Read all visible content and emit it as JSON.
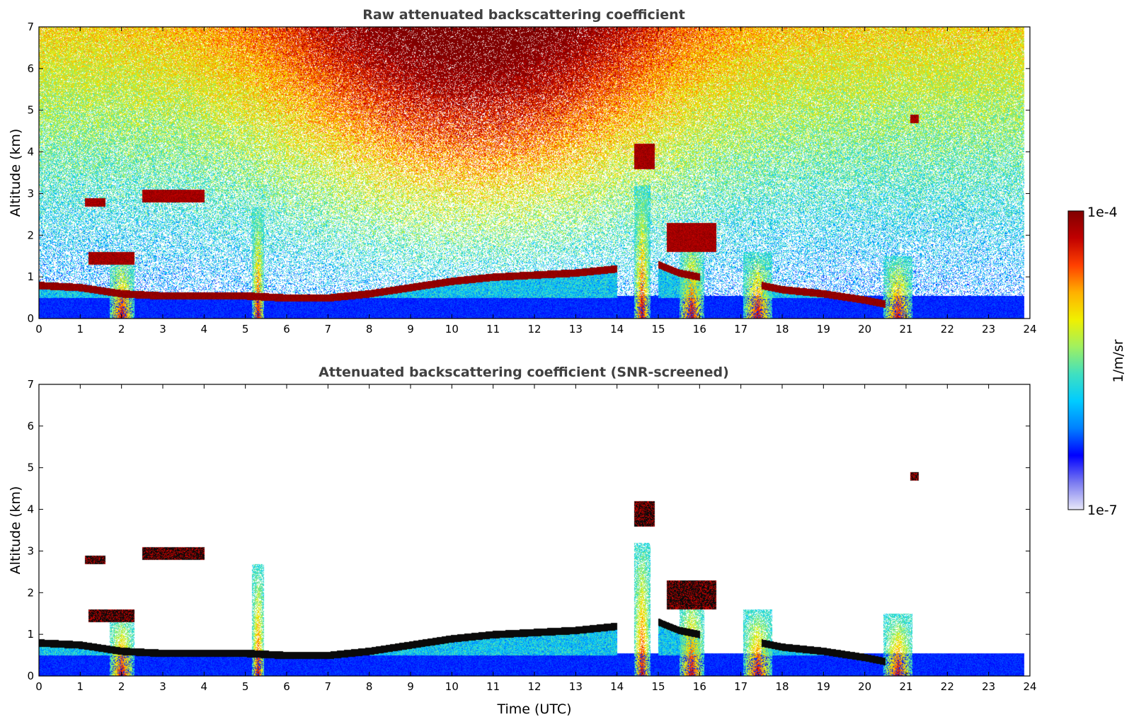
{
  "chart_data": [
    {
      "type": "heatmap",
      "title": "Raw attenuated backscattering coefficient",
      "xlabel": "",
      "ylabel": "Altitude (km)",
      "xlim": [
        0,
        24
      ],
      "ylim": [
        0,
        7
      ],
      "xticks": [
        "0",
        "1",
        "2",
        "3",
        "4",
        "5",
        "6",
        "7",
        "8",
        "9",
        "10",
        "11",
        "12",
        "13",
        "14",
        "15",
        "16",
        "17",
        "18",
        "19",
        "20",
        "21",
        "22",
        "23",
        "24"
      ],
      "yticks": [
        "0",
        "1",
        "2",
        "3",
        "4",
        "5",
        "6",
        "7"
      ],
      "screened": false,
      "features": [
        {
          "kind": "boundary-layer",
          "points": [
            [
              0,
              0.8
            ],
            [
              1,
              0.75
            ],
            [
              2,
              0.6
            ],
            [
              3,
              0.55
            ],
            [
              4,
              0.55
            ],
            [
              5,
              0.55
            ],
            [
              6,
              0.5
            ],
            [
              7,
              0.5
            ],
            [
              8,
              0.6
            ],
            [
              9,
              0.75
            ],
            [
              10,
              0.9
            ],
            [
              11,
              1.0
            ],
            [
              12,
              1.05
            ],
            [
              13,
              1.1
            ],
            [
              14,
              1.2
            ]
          ]
        },
        {
          "kind": "boundary-layer",
          "points": [
            [
              15,
              1.3
            ],
            [
              15.5,
              1.1
            ],
            [
              16,
              1.0
            ]
          ]
        },
        {
          "kind": "boundary-layer",
          "points": [
            [
              17.5,
              0.8
            ],
            [
              18,
              0.7
            ],
            [
              19,
              0.6
            ],
            [
              20,
              0.45
            ],
            [
              20.5,
              0.35
            ]
          ]
        },
        {
          "kind": "cloud",
          "x": [
            1.1,
            1.6
          ],
          "y": [
            2.7,
            2.9
          ]
        },
        {
          "kind": "cloud",
          "x": [
            2.5,
            4.0
          ],
          "y": [
            2.8,
            3.1
          ]
        },
        {
          "kind": "cloud",
          "x": [
            1.2,
            2.3
          ],
          "y": [
            1.3,
            1.6
          ]
        },
        {
          "kind": "cloud",
          "x": [
            14.4,
            14.9
          ],
          "y": [
            3.6,
            4.2
          ]
        },
        {
          "kind": "cloud",
          "x": [
            15.2,
            16.4
          ],
          "y": [
            1.6,
            2.3
          ]
        },
        {
          "kind": "cloud",
          "x": [
            21.1,
            21.3
          ],
          "y": [
            4.7,
            4.9
          ]
        }
      ]
    },
    {
      "type": "heatmap",
      "title": "Attenuated backscattering coefficient (SNR-screened)",
      "xlabel": "Time (UTC)",
      "ylabel": "Altitude (km)",
      "xlim": [
        0,
        24
      ],
      "ylim": [
        0,
        7
      ],
      "xticks": [
        "0",
        "1",
        "2",
        "3",
        "4",
        "5",
        "6",
        "7",
        "8",
        "9",
        "10",
        "11",
        "12",
        "13",
        "14",
        "15",
        "16",
        "17",
        "18",
        "19",
        "20",
        "21",
        "22",
        "23",
        "24"
      ],
      "yticks": [
        "0",
        "1",
        "2",
        "3",
        "4",
        "5",
        "6",
        "7"
      ],
      "screened": true
    }
  ],
  "colorbar": {
    "label": "1/m/sr",
    "max_label": "1e-4",
    "min_label": "1e-7",
    "scale": "log",
    "range": [
      1e-07,
      0.0001
    ],
    "colormap": [
      "#e8e8f8",
      "#7a7af0",
      "#0000ff",
      "#0080ff",
      "#00ccff",
      "#40e0c0",
      "#a0f060",
      "#f0f000",
      "#ffb000",
      "#ff4000",
      "#c00000",
      "#800000"
    ]
  }
}
